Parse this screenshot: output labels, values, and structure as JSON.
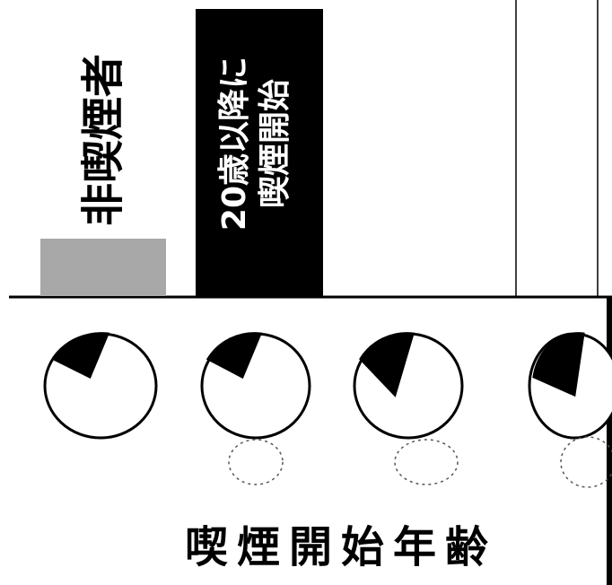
{
  "chart_data": {
    "type": "bar",
    "categories": [
      "非喫煙者",
      "20歳以降に\n喫煙開始"
    ],
    "values": [
      20,
      100
    ],
    "colors": [
      "#a8a8a8",
      "#000000"
    ],
    "ylim": [
      0,
      100
    ],
    "x_label": "喫煙開始年齢"
  }
}
